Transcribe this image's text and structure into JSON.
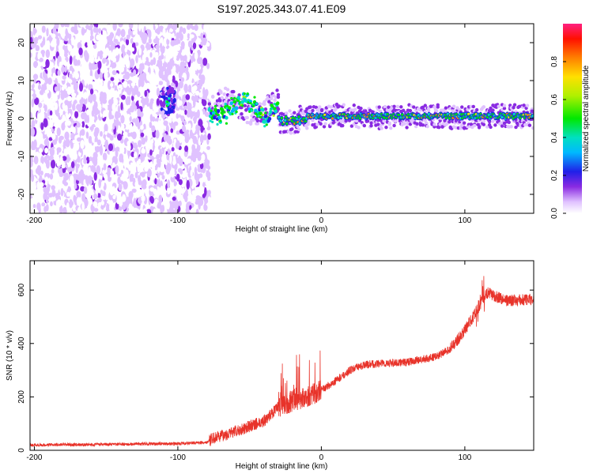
{
  "title": "S197.2025.343.07.41.E09",
  "chart_data": [
    {
      "type": "heatmap",
      "name": "spectrogram",
      "xlabel": "Height of straight line (km)",
      "ylabel": "Frequency (Hz)",
      "xlim": [
        -203,
        148
      ],
      "ylim": [
        -25,
        25
      ],
      "xticks": [
        -200,
        -100,
        0,
        100
      ],
      "yticks": [
        -20,
        -10,
        0,
        10,
        20
      ],
      "colorbar": {
        "label": "Normalized spectral amplitude",
        "range": [
          0,
          1
        ],
        "ticks": [
          0.0,
          0.2,
          0.4,
          0.6,
          0.8
        ]
      },
      "regions": [
        {
          "x": [
            -203,
            -78
          ],
          "description": "broadband noise across all frequencies"
        },
        {
          "x": [
            -112,
            -102
          ],
          "y_center": 4,
          "description": "local bright patch"
        },
        {
          "x": [
            -78,
            -30
          ],
          "y_center": [
            5,
            2
          ],
          "description": "wandering strong signal"
        },
        {
          "x": [
            -30,
            148
          ],
          "y_center": [
            0,
            1
          ],
          "description": "narrow strong band near 0 Hz"
        }
      ]
    },
    {
      "type": "line",
      "name": "snr",
      "xlabel": "Height of straight line (km)",
      "ylabel": "SNR (10 * v/v)",
      "xlim": [
        -203,
        148
      ],
      "ylim": [
        0,
        710
      ],
      "xticks": [
        -200,
        -100,
        0,
        100
      ],
      "yticks": [
        0,
        200,
        400,
        600
      ],
      "color": "#e8332a",
      "trend": {
        "x": [
          -203,
          -150,
          -100,
          -80,
          -75,
          -60,
          -40,
          -30,
          -20,
          -10,
          0,
          10,
          20,
          30,
          40,
          60,
          80,
          90,
          100,
          108,
          112,
          116,
          120,
          130,
          148
        ],
        "y": [
          20,
          22,
          25,
          30,
          45,
          70,
          110,
          160,
          185,
          200,
          225,
          260,
          300,
          320,
          325,
          330,
          350,
          380,
          450,
          520,
          560,
          590,
          580,
          560,
          565
        ]
      }
    }
  ]
}
